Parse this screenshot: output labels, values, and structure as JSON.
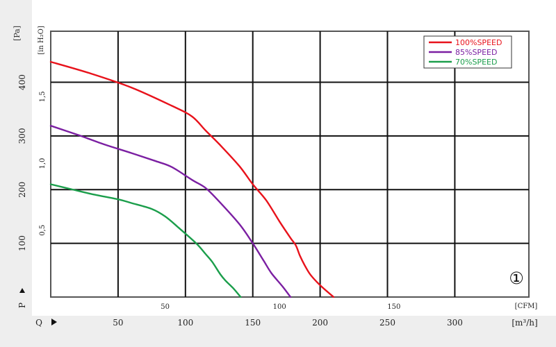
{
  "chart_data": {
    "type": "line",
    "x_axis_m3h": {
      "label": "[m³/h]",
      "axis_letter": "Q",
      "ticks": [
        50,
        100,
        150,
        200,
        250,
        300
      ],
      "range": [
        0,
        355
      ]
    },
    "x_axis_cfm": {
      "label": "[CFM]",
      "ticks": [
        50,
        100,
        150
      ],
      "range": [
        0,
        209
      ]
    },
    "y_axis_pa": {
      "label": "[Pa]",
      "axis_letter": "P",
      "ticks": [
        100,
        200,
        300,
        400
      ],
      "range": [
        0,
        495
      ]
    },
    "y_axis_inh2o": {
      "label": "[in H₂O]",
      "ticks": [
        "0,5",
        "1,0",
        "1,5"
      ],
      "tick_values": [
        0.5,
        1.0,
        1.5
      ],
      "range": [
        0,
        1.99
      ]
    },
    "grid": true,
    "legend_position": "top-right",
    "curve_marker": "①",
    "series": [
      {
        "name": "100%SPEED",
        "color": "#e8121b",
        "points": [
          [
            0,
            438
          ],
          [
            30,
            416
          ],
          [
            60,
            390
          ],
          [
            90,
            356
          ],
          [
            105,
            336
          ],
          [
            115,
            310
          ],
          [
            125,
            285
          ],
          [
            140,
            244
          ],
          [
            150,
            210
          ],
          [
            160,
            180
          ],
          [
            170,
            140
          ],
          [
            178,
            110
          ],
          [
            182,
            96
          ],
          [
            185,
            77
          ],
          [
            189,
            57
          ],
          [
            193,
            41
          ],
          [
            200,
            22
          ],
          [
            210,
            0
          ]
        ]
      },
      {
        "name": "85%SPEED",
        "color": "#7b1fa2",
        "points": [
          [
            0,
            319
          ],
          [
            20,
            302
          ],
          [
            40,
            284
          ],
          [
            60,
            268
          ],
          [
            78,
            253
          ],
          [
            90,
            242
          ],
          [
            105,
            218
          ],
          [
            115,
            203
          ],
          [
            125,
            178
          ],
          [
            140,
            136
          ],
          [
            150,
            100
          ],
          [
            158,
            68
          ],
          [
            164,
            44
          ],
          [
            172,
            20
          ],
          [
            178,
            0
          ]
        ]
      },
      {
        "name": "70%SPEED",
        "color": "#1b9e4b",
        "points": [
          [
            0,
            210
          ],
          [
            15,
            201
          ],
          [
            30,
            192
          ],
          [
            50,
            182
          ],
          [
            60,
            175
          ],
          [
            75,
            164
          ],
          [
            85,
            150
          ],
          [
            95,
            129
          ],
          [
            108,
            100
          ],
          [
            115,
            80
          ],
          [
            120,
            65
          ],
          [
            126,
            42
          ],
          [
            130,
            30
          ],
          [
            136,
            15
          ],
          [
            141,
            0
          ]
        ]
      }
    ]
  }
}
